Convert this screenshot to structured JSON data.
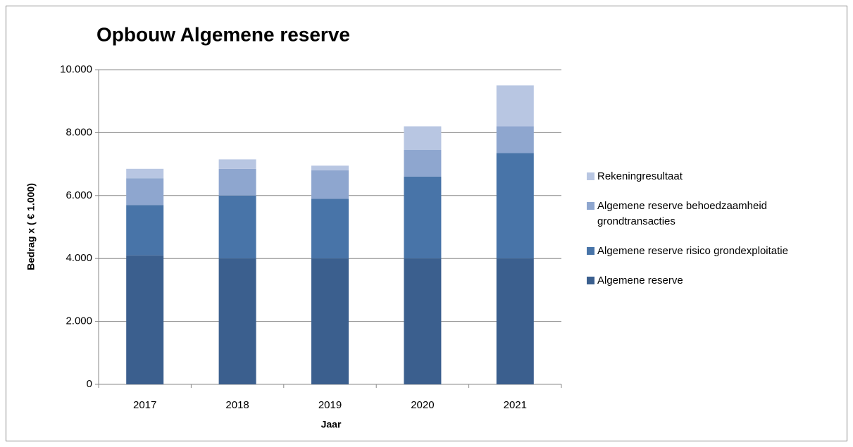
{
  "chart_data": {
    "type": "stacked_bar",
    "title": "Opbouw Algemene reserve",
    "x_label": "Jaar",
    "y_label": "Bedrag x ( € 1.000)",
    "categories": [
      "2017",
      "2018",
      "2019",
      "2020",
      "2021"
    ],
    "series": [
      {
        "name": "Algemene reserve",
        "color": "#3b5f8e",
        "values": [
          4100,
          4000,
          4000,
          4000,
          4000
        ]
      },
      {
        "name": "Algemene reserve risico grondexploitatie",
        "color": "#4874a8",
        "values": [
          1600,
          2000,
          1900,
          2600,
          3350
        ]
      },
      {
        "name": "Algemene reserve behoedzaamheid grondtransacties",
        "color": "#8ea6cf",
        "values": [
          850,
          850,
          900,
          850,
          850
        ]
      },
      {
        "name": "Rekeningresultaat",
        "color": "#b8c6e2",
        "values": [
          300,
          300,
          150,
          750,
          1300
        ]
      }
    ],
    "ylim": [
      0,
      10000
    ],
    "yticks": [
      0,
      {
        "value": 2000,
        "label": "2.000"
      },
      {
        "value": 4000,
        "label": "4.000"
      },
      {
        "value": 6000,
        "label": "6.000"
      },
      {
        "value": 8000,
        "label": "8.000"
      },
      {
        "value": 10000,
        "label": "10.000"
      }
    ],
    "grid": true,
    "legend": "right"
  }
}
